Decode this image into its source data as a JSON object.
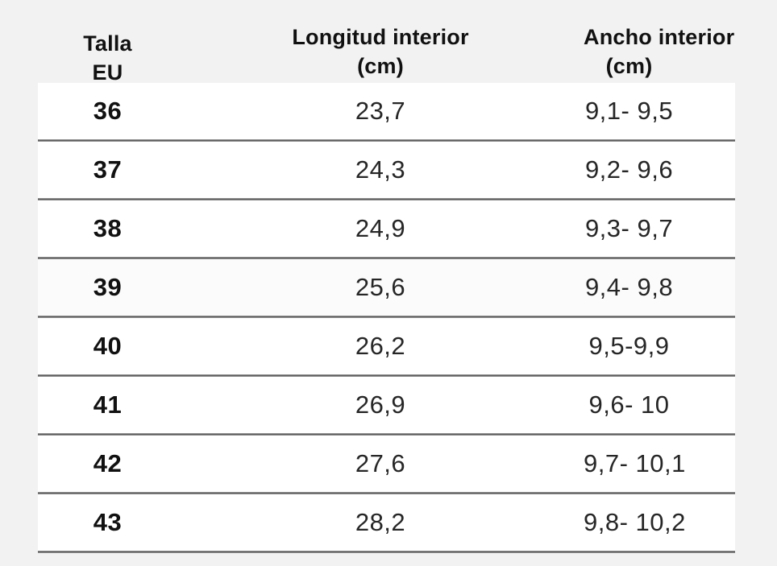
{
  "colors": {
    "page_background": "#f2f2f2",
    "row_background": "#ffffff",
    "row_39_background": "#fbfbfb",
    "divider": "#4f4f4f",
    "header_text": "#111111",
    "value_text": "#262626"
  },
  "header": {
    "columns": [
      {
        "line1": "Talla",
        "line2": "EU"
      },
      {
        "line1": "Longitud interior",
        "line2": "(cm)"
      },
      {
        "line1": "Ancho interior",
        "line2": "(cm)"
      }
    ]
  },
  "chart_data": {
    "type": "table",
    "columns": [
      "Talla EU",
      "Longitud interior (cm)",
      "Ancho interior (cm)"
    ],
    "rows": [
      [
        "36",
        "23,7",
        "9,1- 9,5"
      ],
      [
        "37",
        "24,3",
        "9,2- 9,6"
      ],
      [
        "38",
        "24,9",
        "9,3- 9,7"
      ],
      [
        "39",
        "25,6",
        "9,4- 9,8"
      ],
      [
        "40",
        "26,2",
        "9,5-9,9"
      ],
      [
        "41",
        "26,9",
        "9,6- 10"
      ],
      [
        "42",
        "27,6",
        "9,7- 10,1"
      ],
      [
        "43",
        "28,2",
        "9,8- 10,2"
      ]
    ]
  }
}
